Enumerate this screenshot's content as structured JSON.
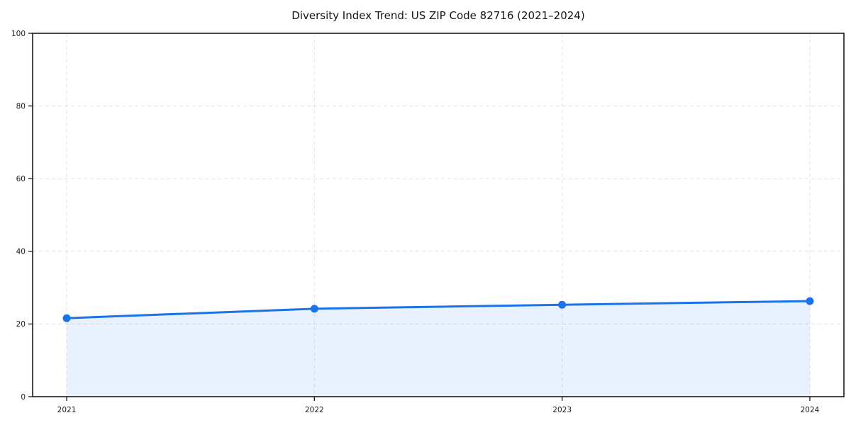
{
  "chart_data": {
    "type": "line",
    "title": "Diversity Index Trend: US ZIP Code 82716 (2021–2024)",
    "categories": [
      "2021",
      "2022",
      "2023",
      "2024"
    ],
    "series": [
      {
        "name": "Diversity Index",
        "values": [
          21.6,
          24.2,
          25.3,
          26.3
        ]
      }
    ],
    "xlabel": "",
    "ylabel": "",
    "ylim": [
      0,
      100
    ],
    "yticks": [
      0,
      20,
      40,
      60,
      80,
      100
    ],
    "grid": true,
    "grid_style": "dashed",
    "legend_position": "none",
    "area_fill": true,
    "marker": "circle"
  },
  "colors": {
    "line": "#1a73e8",
    "marker": "#1a73e8",
    "area": "rgba(26,115,232,0.10)",
    "grid": "#e2e2e2",
    "axis": "#1a1a1a",
    "tick_text": "#1a1a1a",
    "background": "#ffffff"
  }
}
